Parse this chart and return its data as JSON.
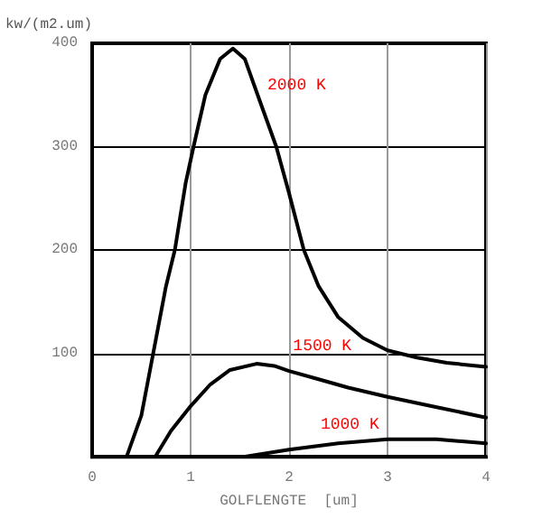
{
  "chart_data": {
    "type": "line",
    "xlabel": "GOLFLENGTE  [um]",
    "ylabel": "kw/(m2.um)",
    "xlim": [
      0,
      4
    ],
    "ylim": [
      0,
      400
    ],
    "xticks": [
      0,
      1,
      2,
      3,
      4
    ],
    "yticks": [
      {
        "value": 0,
        "label": null
      },
      100,
      200,
      300,
      400
    ],
    "grid": true,
    "marker": "none",
    "line_style": "solid",
    "series": [
      {
        "color": "#000000",
        "x": [
          0.35,
          0.5,
          0.62,
          0.75,
          0.84,
          0.95,
          1.03,
          1.15,
          1.3,
          1.43,
          1.55,
          1.7,
          1.87,
          2.0,
          2.15,
          2.3,
          2.5,
          2.75,
          3.0,
          3.3,
          3.6,
          4.0
        ],
        "values": [
          0,
          40,
          100,
          165,
          200,
          265,
          300,
          350,
          385,
          395,
          385,
          345,
          300,
          255,
          200,
          165,
          135,
          115,
          103,
          96,
          91,
          87
        ]
      },
      {
        "color": "#000000",
        "x": [
          0.64,
          0.8,
          1.0,
          1.2,
          1.4,
          1.67,
          1.85,
          2.0,
          2.3,
          2.6,
          3.0,
          3.5,
          4.0
        ],
        "values": [
          0,
          25,
          49,
          70,
          84,
          90,
          88,
          83,
          75,
          67,
          58,
          48,
          38
        ]
      },
      {
        "color": "#000000",
        "x": [
          1.54,
          2.0,
          2.5,
          3.0,
          3.5,
          4.0
        ],
        "values": [
          0,
          7,
          13,
          17,
          17,
          13
        ]
      }
    ],
    "annotations": [
      "2000 K",
      "1500 K",
      "1000 K"
    ]
  }
}
